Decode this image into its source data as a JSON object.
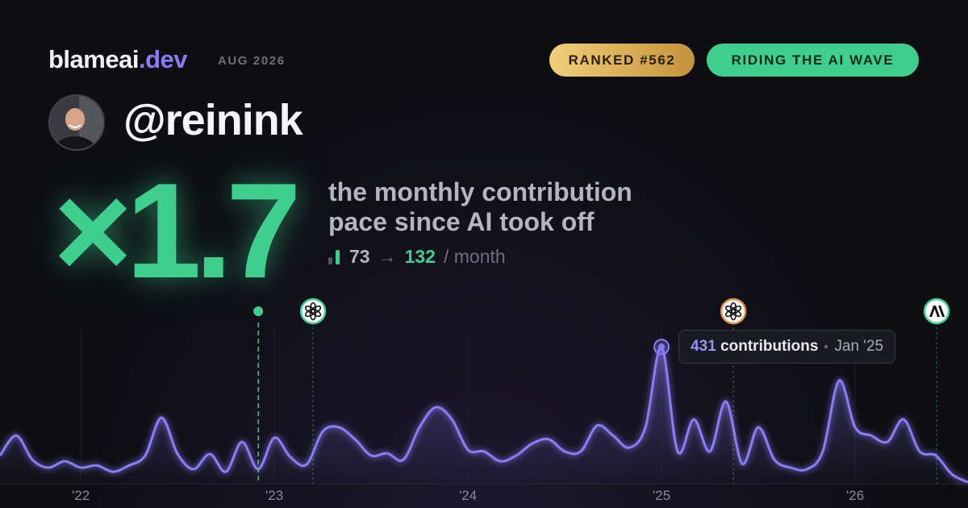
{
  "header": {
    "brand": "blameai",
    "brand_tld": ".dev",
    "date": "AUG 2026",
    "badges": [
      "RANKED #562",
      "RIDING THE AI WAVE"
    ]
  },
  "user": {
    "handle": "@reinink"
  },
  "headline": {
    "multiplier": "×1.7",
    "description": [
      "the monthly contribution",
      "pace since AI took off"
    ]
  },
  "pace": {
    "before": 73,
    "arrow": "→",
    "after": 132,
    "unit": "/ month"
  },
  "chart_data": {
    "type": "area",
    "color": "#8b7cf6",
    "x": [
      2021.583,
      2021.667,
      2021.75,
      2021.833,
      2021.917,
      2022,
      2022.083,
      2022.167,
      2022.25,
      2022.333,
      2022.417,
      2022.5,
      2022.583,
      2022.667,
      2022.75,
      2022.833,
      2022.917,
      2023,
      2023.083,
      2023.167,
      2023.25,
      2023.333,
      2023.417,
      2023.5,
      2023.583,
      2023.667,
      2023.75,
      2023.833,
      2023.917,
      2024,
      2024.083,
      2024.167,
      2024.25,
      2024.333,
      2024.417,
      2024.5,
      2024.583,
      2024.667,
      2024.75,
      2024.833,
      2024.917,
      2025,
      2025.083,
      2025.167,
      2025.25,
      2025.333,
      2025.417,
      2025.5,
      2025.583,
      2025.667,
      2025.75,
      2025.833,
      2025.917,
      2026,
      2026.083,
      2026.167,
      2026.25,
      2026.333,
      2026.417,
      2026.5,
      2026.583
    ],
    "values": [
      89,
      152,
      76,
      51,
      71,
      51,
      58,
      38,
      58,
      89,
      208,
      94,
      46,
      94,
      38,
      132,
      46,
      145,
      84,
      61,
      165,
      178,
      140,
      89,
      96,
      76,
      178,
      241,
      203,
      107,
      102,
      71,
      89,
      127,
      140,
      102,
      102,
      183,
      152,
      114,
      178,
      431,
      102,
      203,
      102,
      259,
      63,
      178,
      76,
      51,
      46,
      102,
      325,
      178,
      152,
      132,
      203,
      102,
      89,
      30,
      5
    ],
    "xlim": [
      2021.583,
      2026.583
    ],
    "ylim": [
      0,
      500
    ],
    "xticks": [
      {
        "value": 2022,
        "label": "'22"
      },
      {
        "value": 2023,
        "label": "'23"
      },
      {
        "value": 2024,
        "label": "'24"
      },
      {
        "value": 2025,
        "label": "'25"
      },
      {
        "value": 2026,
        "label": "'26"
      }
    ],
    "grid": true,
    "events": [
      {
        "x": 2022.917,
        "kind": "dot",
        "color": "#3ecf8e"
      },
      {
        "x": 2023.2,
        "kind": "openai",
        "color": "#3ecf8e"
      },
      {
        "x": 2025.371,
        "kind": "openai",
        "color": "#e0914a"
      },
      {
        "x": 2026.421,
        "kind": "anthropic",
        "color": "#3ecf8e"
      }
    ],
    "tooltip": {
      "value": 431,
      "unit": "contributions",
      "date": "Jan '25"
    }
  }
}
